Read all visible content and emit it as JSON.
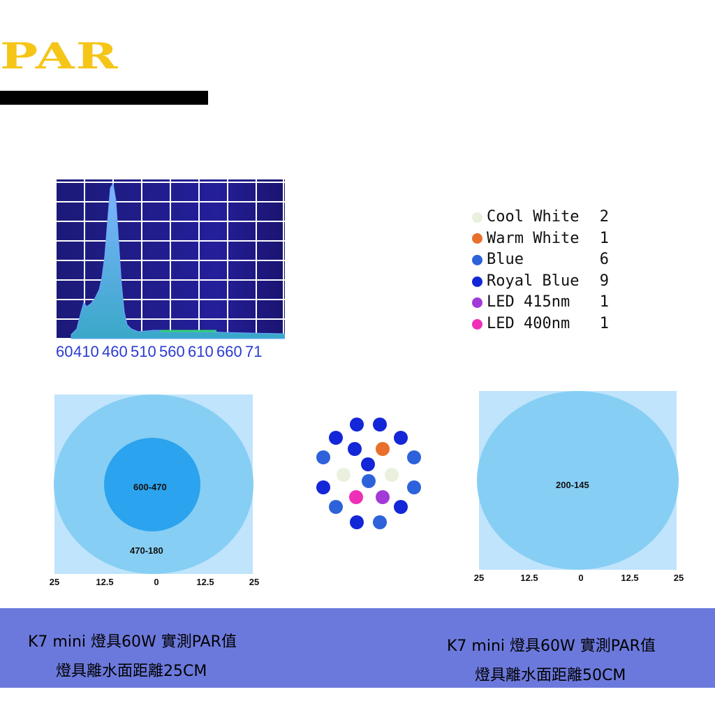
{
  "title": "PAR",
  "spectrum": {
    "x_ticks": [
      "60",
      "410",
      "460",
      "510",
      "560",
      "610",
      "660",
      "71"
    ]
  },
  "legend": [
    {
      "name": "Cool White",
      "count": "2",
      "color": "#e9f1dd"
    },
    {
      "name": "Warm White",
      "count": "1",
      "color": "#e8702c"
    },
    {
      "name": "Blue",
      "count": "6",
      "color": "#2d62da"
    },
    {
      "name": "Royal Blue",
      "count": "9",
      "color": "#1326d8"
    },
    {
      "name": "LED 415nm",
      "count": "1",
      "color": "#a23ad8"
    },
    {
      "name": "LED 400nm",
      "count": "1",
      "color": "#f02fb8"
    }
  ],
  "map_25cm": {
    "inner_label": "600-470",
    "outer_label": "470-180",
    "axis": [
      "25",
      "12.5",
      "0",
      "12.5",
      "25"
    ]
  },
  "map_50cm": {
    "label": "200-145",
    "axis": [
      "25",
      "12.5",
      "0",
      "12.5",
      "25"
    ]
  },
  "captions": {
    "left_line1": "K7 mini 燈具60W 實測PAR值",
    "left_line2": "燈具離水面距離25CM",
    "right_line1": "K7 mini 燈具60W 實測PAR值",
    "right_line2": "燈具離水面距離50CM"
  },
  "colors": {
    "title": "#f5c518",
    "band": "#6c79dc",
    "map_bg": "#bfe4fb",
    "map_mid": "#87cef4",
    "map_core": "#2ba3ee"
  }
}
